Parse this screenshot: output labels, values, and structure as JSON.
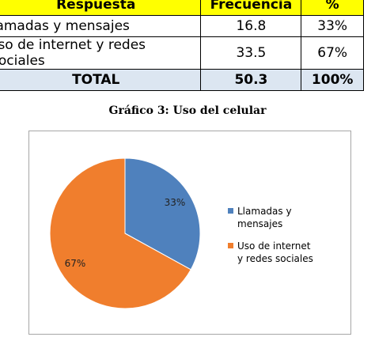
{
  "table": {
    "headers": [
      "Respuesta",
      "Frecuencia",
      "%"
    ],
    "rows": [
      [
        "llamadas y mensajes",
        "16.8",
        "33%"
      ],
      [
        "Uso de internet y redes sociales",
        "33.5",
        "67%"
      ]
    ],
    "total": [
      "TOTAL",
      "50.3",
      "100%"
    ]
  },
  "caption": "Gráfico 3: Uso del celular",
  "chart_data": {
    "type": "pie",
    "title": "",
    "labels": [
      "Llamadas y mensajes",
      "Uso de internet y redes sociales"
    ],
    "values": [
      33,
      67
    ],
    "data_labels": [
      "33%",
      "67%"
    ],
    "colors": [
      "#4f81bd",
      "#f07e2d"
    ],
    "legend_position": "right"
  }
}
